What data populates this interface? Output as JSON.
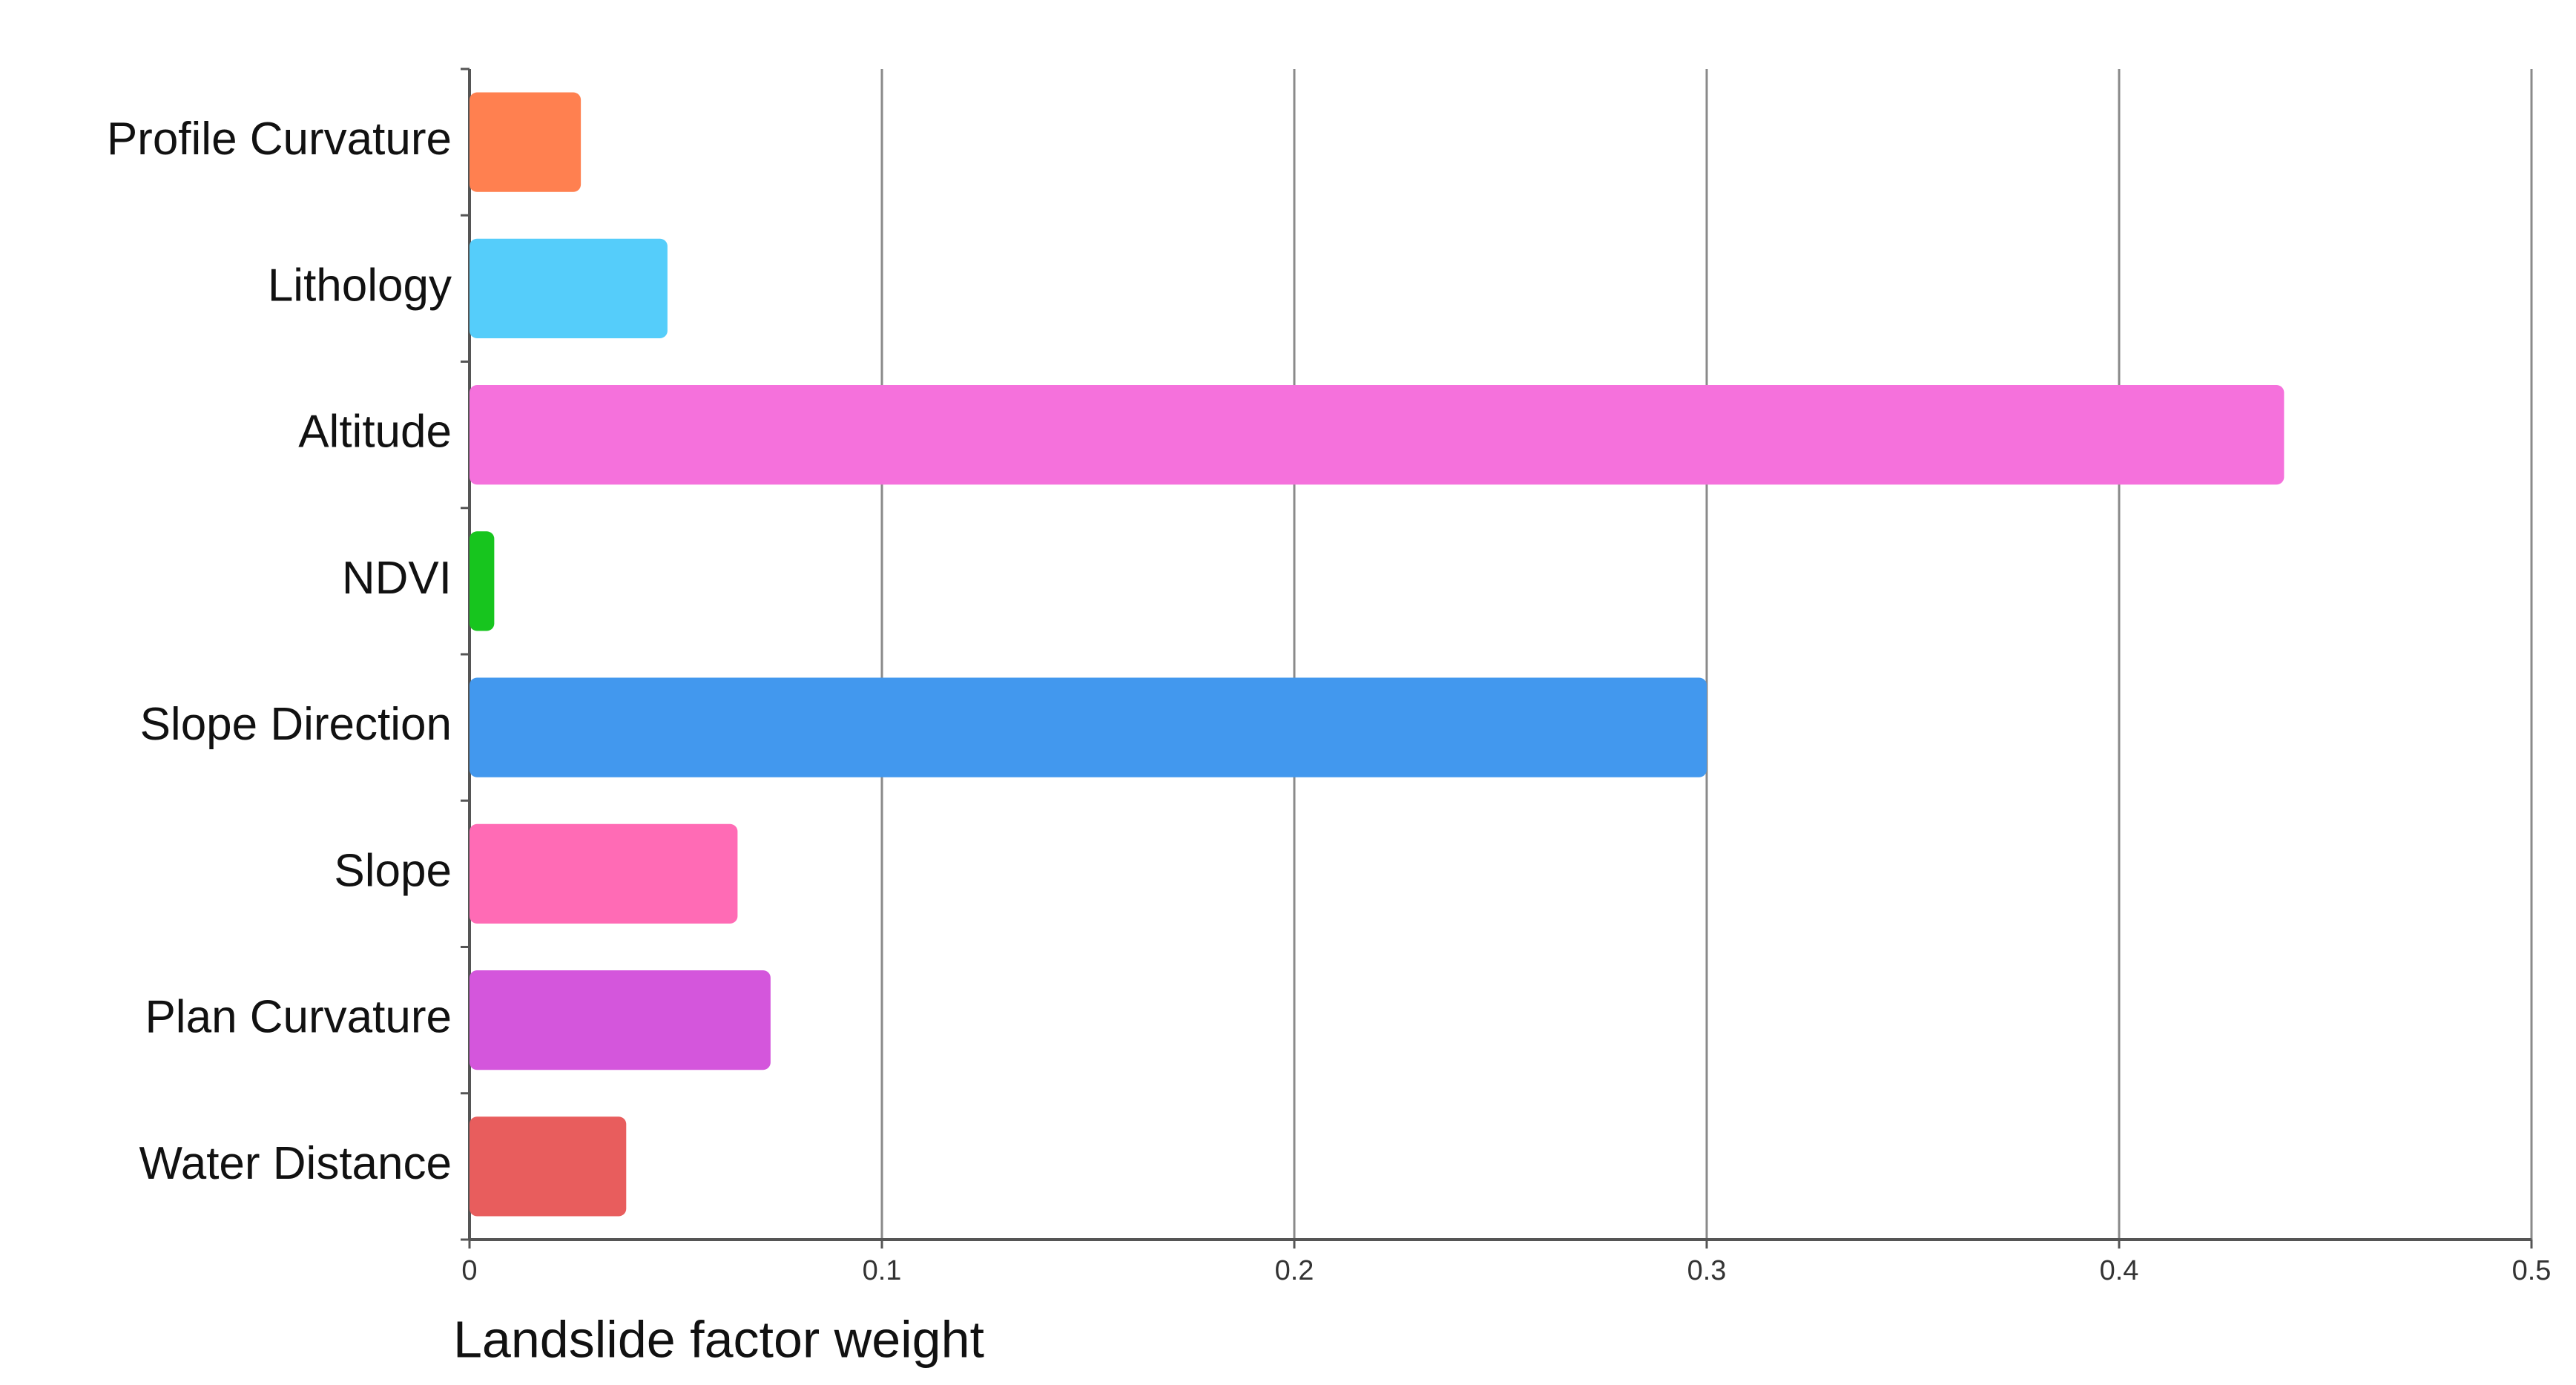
{
  "chart_data": {
    "type": "hbar",
    "categories": [
      "Profile Curvature",
      "Lithology",
      "Altitude",
      "NDVI",
      "Slope Direction",
      "Slope",
      "Plan Curvature",
      "Water Distance"
    ],
    "values": [
      0.027,
      0.048,
      0.44,
      0.006,
      0.3,
      0.065,
      0.073,
      0.038
    ],
    "colors": [
      "#ff8050",
      "#55cdfa",
      "#f571dc",
      "#17c51e",
      "#4298ee",
      "#ff6bb5",
      "#d456dc",
      "#e85d5d"
    ],
    "xlabel": "Landslide factor weight",
    "xlim": [
      0,
      0.5
    ],
    "xticks": [
      0,
      0.1,
      0.2,
      0.3,
      0.4,
      0.5
    ],
    "grid": true
  }
}
